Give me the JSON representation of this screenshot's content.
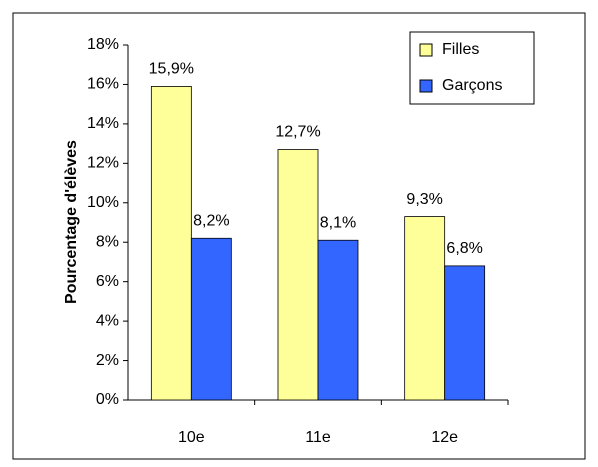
{
  "chart_data": {
    "type": "bar",
    "y_label": "Pourcentage d'élèves",
    "categories": [
      "10e",
      "11e",
      "12e"
    ],
    "series": [
      {
        "name": "Filles",
        "color": "#ffff99",
        "values": [
          15.9,
          12.7,
          9.3
        ],
        "value_labels": [
          "15,9%",
          "12,7%",
          "9,3%"
        ]
      },
      {
        "name": "Garçons",
        "color": "#3366ff",
        "values": [
          8.2,
          8.1,
          6.8
        ],
        "value_labels": [
          "8,2%",
          "8,1%",
          "6,8%"
        ]
      }
    ],
    "ylim": [
      0,
      18
    ],
    "yticks": [
      {
        "value": 0,
        "label": "0%"
      },
      {
        "value": 2,
        "label": "2%"
      },
      {
        "value": 4,
        "label": "4%"
      },
      {
        "value": 6,
        "label": "6%"
      },
      {
        "value": 8,
        "label": "8%"
      },
      {
        "value": 10,
        "label": "10%"
      },
      {
        "value": 12,
        "label": "12%"
      },
      {
        "value": 14,
        "label": "14%"
      },
      {
        "value": 16,
        "label": "16%"
      },
      {
        "value": 18,
        "label": "18%"
      }
    ],
    "legend": "top-right"
  }
}
